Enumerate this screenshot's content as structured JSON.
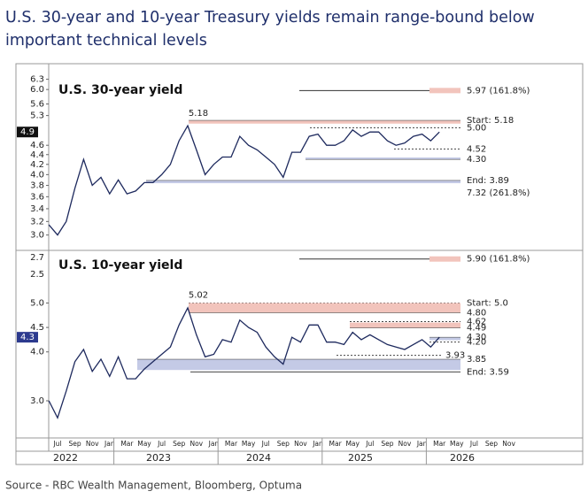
{
  "title_lines": [
    "U.S. 30-year and 10-year Treasury yields remain range-bound below",
    "important technical levels"
  ],
  "source": "Source - RBC Wealth Management, Bloomberg, Optuma",
  "chart_data": [
    {
      "type": "line",
      "title": "U.S. 30-year yield",
      "log_scale": true,
      "color": "#1e2a5e",
      "categories": [
        null,
        "Jul",
        null,
        "Sep",
        null,
        "Nov",
        null,
        "Jan",
        null,
        "Mar",
        null,
        "May",
        null,
        "Jul",
        null,
        "Sep",
        null,
        "Nov",
        null,
        "Jan",
        null,
        "Mar",
        null,
        "May",
        null,
        "Jul",
        null,
        "Sep",
        null,
        "Nov",
        null,
        "Jan",
        null,
        "Mar",
        null,
        "May",
        null,
        "Jul",
        null,
        "Sep",
        null,
        "Nov",
        null,
        "Jan",
        null,
        "Mar",
        null,
        "May",
        null,
        "Jul",
        null,
        "Sep",
        null,
        "Nov"
      ],
      "values": [
        3.15,
        3.0,
        3.2,
        3.75,
        4.3,
        3.8,
        3.95,
        3.65,
        3.9,
        3.65,
        3.7,
        3.85,
        3.85,
        4.0,
        4.2,
        4.7,
        5.05,
        4.5,
        4.0,
        4.2,
        4.35,
        4.35,
        4.8,
        4.6,
        4.5,
        4.35,
        4.2,
        3.95,
        4.45,
        4.45,
        4.8,
        4.85,
        4.6,
        4.6,
        4.7,
        4.95,
        4.8,
        4.9,
        4.9,
        4.7,
        4.6,
        4.65,
        4.8,
        4.85,
        4.7,
        4.9,
        null,
        null,
        null,
        null,
        null,
        null,
        null,
        null
      ],
      "ylim": [
        2.8,
        6.45
      ],
      "yticks": [
        {
          "value": 3,
          "label": "3.0"
        },
        3.2,
        3.4,
        3.6,
        3.8,
        {
          "value": 4,
          "label": "4.0"
        },
        4.2,
        4.4,
        4.6,
        5.3,
        5.6,
        {
          "value": 6,
          "label": "6.0"
        },
        6.3
      ],
      "current": 4.9,
      "peak": 5.18,
      "levels": [
        {
          "value": 5.97,
          "label": "5.97 (161.8%)",
          "style": "target"
        },
        {
          "value": 5.18,
          "label": "Start: 5.18",
          "style": "band",
          "band_to": 5.1,
          "color": "#f2c4bc"
        },
        {
          "value": 5,
          "label": "5.00",
          "style": "dashed"
        },
        {
          "value": 4.52,
          "label": "4.52",
          "style": "dashed"
        },
        {
          "value": 4.3,
          "label": "4.30",
          "style": "band",
          "band_to": 4.34,
          "color": "#c4cae6"
        },
        {
          "value": 3.89,
          "label": "End: 3.89",
          "style": "band",
          "band_to": 3.84,
          "color": "#c4cae6"
        },
        {
          "value": 7.32,
          "label": "7.32 (261.8%)",
          "style": "text"
        }
      ]
    },
    {
      "type": "line",
      "title": "U.S. 10-year yield",
      "log_scale": false,
      "color": "#1e2a5e",
      "categories": [
        null,
        "Jul",
        null,
        "Sep",
        null,
        "Nov",
        null,
        "Jan",
        null,
        "Mar",
        null,
        "May",
        null,
        "Jul",
        null,
        "Sep",
        null,
        "Nov",
        null,
        "Jan",
        null,
        "Mar",
        null,
        "May",
        null,
        "Jul",
        null,
        "Sep",
        null,
        "Nov",
        null,
        "Jan",
        null,
        "Mar",
        null,
        "May",
        null,
        "Jul",
        null,
        "Sep",
        null,
        "Nov",
        null,
        "Jan",
        null,
        "Mar",
        null,
        "May",
        null,
        "Jul",
        null,
        "Sep",
        null,
        "Nov"
      ],
      "values": [
        3.0,
        2.65,
        3.2,
        3.8,
        4.05,
        3.6,
        3.85,
        3.5,
        3.9,
        3.45,
        3.45,
        3.65,
        3.8,
        3.95,
        4.1,
        4.55,
        4.9,
        4.35,
        3.9,
        3.95,
        4.25,
        4.2,
        4.65,
        4.5,
        4.4,
        4.1,
        3.9,
        3.75,
        4.3,
        4.2,
        4.55,
        4.55,
        4.2,
        4.2,
        4.15,
        4.4,
        4.25,
        4.35,
        4.25,
        4.15,
        4.1,
        4.05,
        4.15,
        4.25,
        4.1,
        4.3,
        null,
        null,
        null,
        null,
        null,
        null,
        null,
        null
      ],
      "ylim": [
        2.24,
        6.04
      ],
      "yticks": [
        {
          "value": 3,
          "label": "3.0"
        },
        {
          "value": 4,
          "label": "4.0"
        },
        4.5,
        {
          "value": 5,
          "label": "5.0"
        }
      ],
      "axis_extra_labels": [
        "2.7",
        "2.5"
      ],
      "current": 4.3,
      "peak": 5.02,
      "years": [
        "2022",
        "2023",
        "2024",
        "2025",
        "2026"
      ],
      "levels": [
        {
          "value": 5.9,
          "label": "5.90 (161.8%)",
          "style": "target"
        },
        {
          "value": 5,
          "label": "Start: 5.0",
          "style": "dashed"
        },
        {
          "value": 4.8,
          "label": "4.80",
          "style": "band",
          "band_to": 5.0,
          "color": "#f2c4bc"
        },
        {
          "value": 4.62,
          "label": "4.62",
          "style": "dashed"
        },
        {
          "value": 4.49,
          "label": "4.49",
          "style": "band",
          "band_to": 4.6,
          "color": "#f2c4bc"
        },
        {
          "value": 4.3,
          "label": "4.30",
          "style": "band",
          "band_to": 4.24,
          "color": "#c4cae6"
        },
        {
          "value": 4.2,
          "label": "4.20",
          "style": "dashed"
        },
        {
          "value": 3.93,
          "label": "3.93",
          "style": "dashed"
        },
        {
          "value": 3.85,
          "label": "3.85",
          "style": "band",
          "band_to": 3.63,
          "color": "#c4cae6"
        },
        {
          "value": 3.59,
          "label": "End: 3.59",
          "style": "solid"
        }
      ]
    }
  ]
}
